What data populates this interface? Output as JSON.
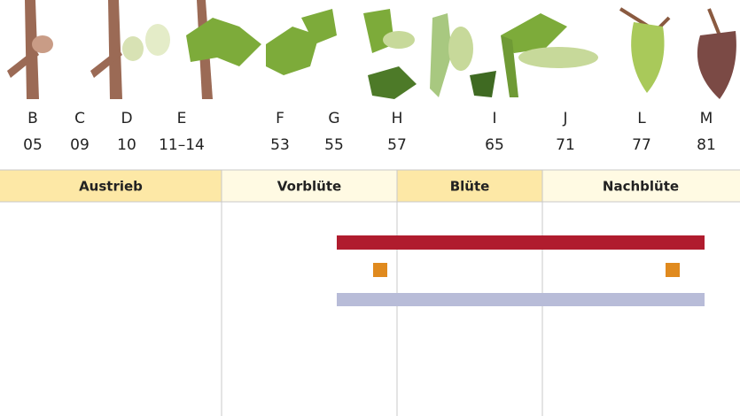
{
  "stages": [
    {
      "letter": "B",
      "code": "05"
    },
    {
      "letter": "C",
      "code": "09"
    },
    {
      "letter": "D",
      "code": "10"
    },
    {
      "letter": "E",
      "code": "11–14"
    },
    {
      "letter": "F",
      "code": "53"
    },
    {
      "letter": "G",
      "code": "55"
    },
    {
      "letter": "H",
      "code": "57"
    },
    {
      "letter": "I",
      "code": "65"
    },
    {
      "letter": "J",
      "code": "71"
    },
    {
      "letter": "L",
      "code": "77"
    },
    {
      "letter": "M",
      "code": "81"
    }
  ],
  "phases": [
    "Austrieb",
    "Vorblüte",
    "Blüte",
    "Nachblüte"
  ]
}
